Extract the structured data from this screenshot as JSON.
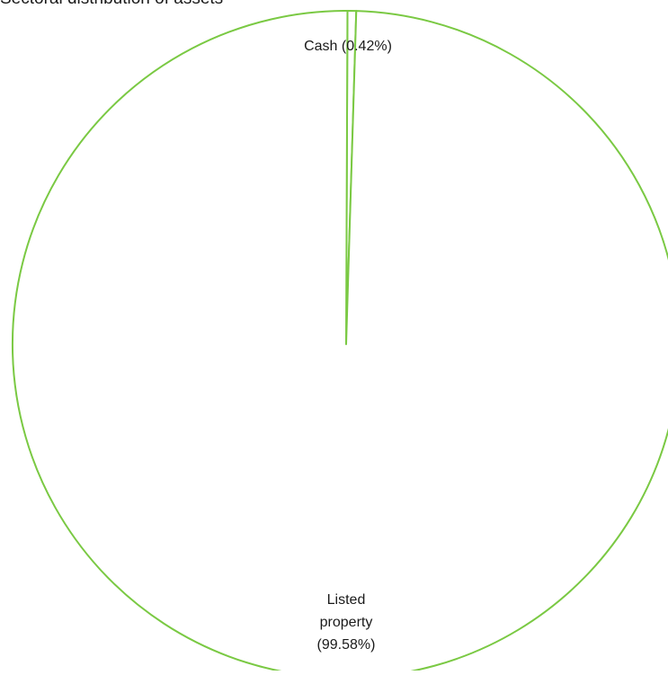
{
  "chart_data": {
    "type": "pie",
    "title": "Sectoral distribution of assets",
    "slices": [
      {
        "label": "Cash (0.42%)",
        "value": 0.42
      },
      {
        "label_lines": [
          "Listed",
          "property",
          "(99.58%)"
        ],
        "value": 99.58
      }
    ],
    "colors": {
      "slice_fill": "#ffffff",
      "slice_stroke": "#7ac943",
      "text": "#1a1a1a"
    }
  }
}
